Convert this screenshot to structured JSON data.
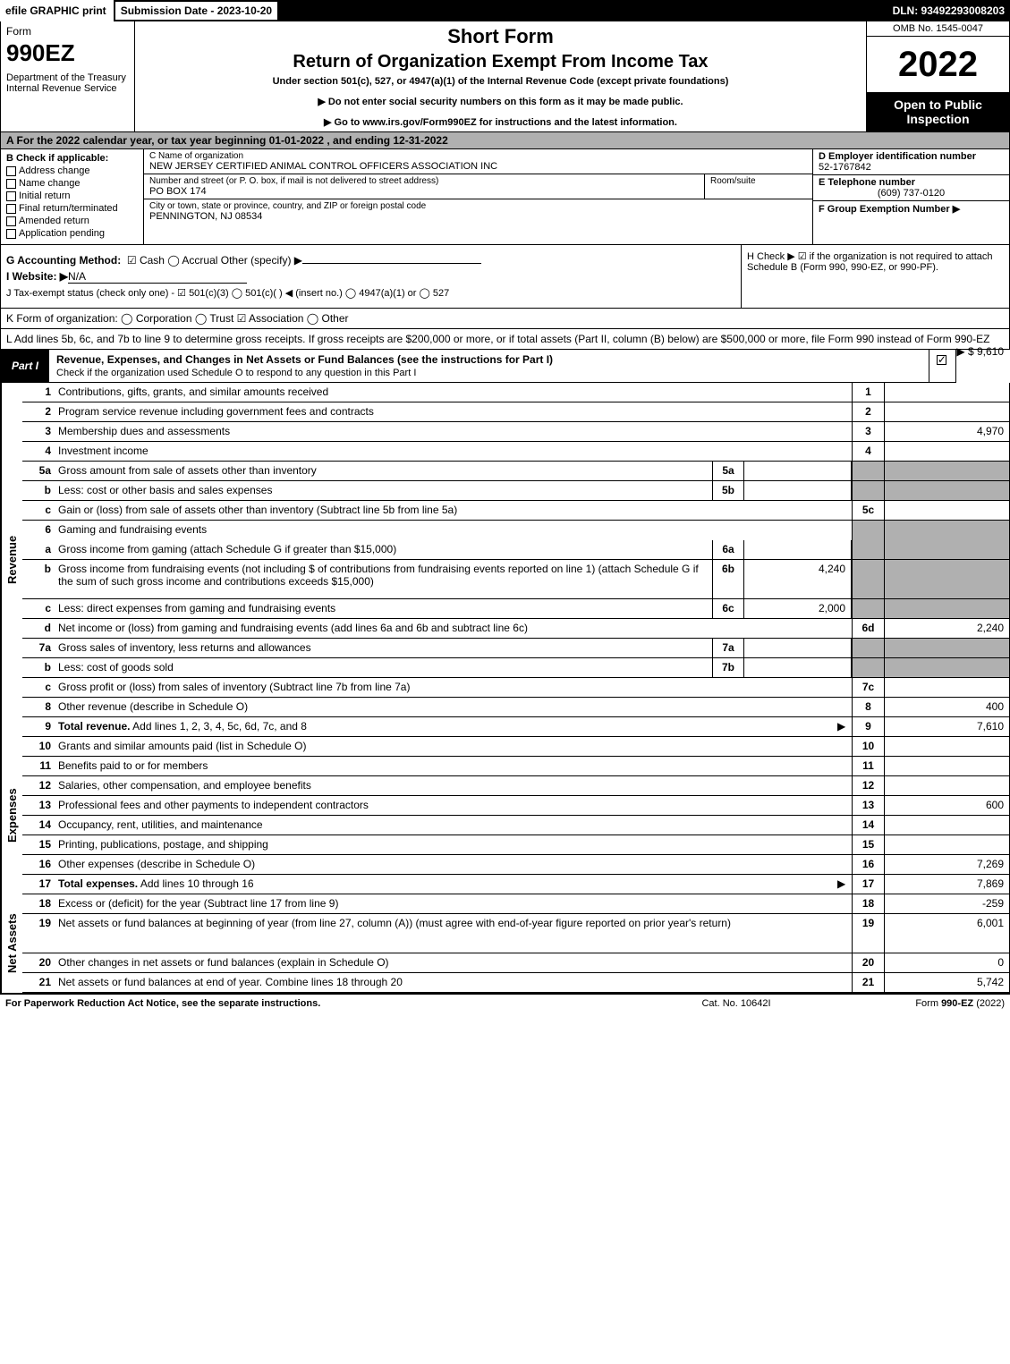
{
  "colors": {
    "black": "#000000",
    "white": "#ffffff",
    "gray_bg": "#b0b0b0"
  },
  "topbar": {
    "efile": "efile GRAPHIC print",
    "sub_date": "Submission Date - 2023-10-20",
    "dln": "DLN: 93492293008203"
  },
  "header": {
    "form_label": "Form",
    "form_no": "990EZ",
    "dept": "Department of the Treasury\nInternal Revenue Service",
    "short": "Short Form",
    "title": "Return of Organization Exempt From Income Tax",
    "under": "Under section 501(c), 527, or 4947(a)(1) of the Internal Revenue Code (except private foundations)",
    "note1": "▶ Do not enter social security numbers on this form as it may be made public.",
    "note2": "▶ Go to www.irs.gov/Form990EZ for instructions and the latest information.",
    "omb": "OMB No. 1545-0047",
    "year": "2022",
    "open": "Open to Public Inspection"
  },
  "A": "A  For the 2022 calendar year, or tax year beginning 01-01-2022  , and ending 12-31-2022",
  "B": {
    "label": "B  Check if applicable:",
    "opts": [
      "Address change",
      "Name change",
      "Initial return",
      "Final return/terminated",
      "Amended return",
      "Application pending"
    ]
  },
  "C": {
    "name_lbl": "C Name of organization",
    "name": "NEW JERSEY CERTIFIED ANIMAL CONTROL OFFICERS ASSOCIATION INC",
    "street_lbl": "Number and street (or P. O. box, if mail is not delivered to street address)",
    "street": "PO BOX 174",
    "room_lbl": "Room/suite",
    "city_lbl": "City or town, state or province, country, and ZIP or foreign postal code",
    "city": "PENNINGTON, NJ  08534"
  },
  "D": {
    "lbl": "D Employer identification number",
    "val": "52-1767842"
  },
  "E": {
    "lbl": "E Telephone number",
    "val": "(609) 737-0120"
  },
  "F": {
    "lbl": "F Group Exemption Number  ▶",
    "val": ""
  },
  "G": {
    "lbl": "G Accounting Method:",
    "opts_text": "☑ Cash  ◯ Accrual   Other (specify) ▶"
  },
  "H": "H   Check ▶  ☑  if the organization is not required to attach Schedule B (Form 990, 990-EZ, or 990-PF).",
  "I": {
    "lbl": "I Website: ▶",
    "val": "N/A"
  },
  "J": "J Tax-exempt status (check only one) -  ☑ 501(c)(3) ◯ 501(c)(  ) ◀ (insert no.) ◯ 4947(a)(1) or ◯ 527",
  "K": "K Form of organization:   ◯ Corporation  ◯ Trust  ☑ Association  ◯ Other",
  "L": {
    "text": "L Add lines 5b, 6c, and 7b to line 9 to determine gross receipts. If gross receipts are $200,000 or more, or if total assets (Part II, column (B) below) are $500,000 or more, file Form 990 instead of Form 990-EZ",
    "amt": "▶ $ 9,610"
  },
  "partI": {
    "label": "Part I",
    "title": "Revenue, Expenses, and Changes in Net Assets or Fund Balances (see the instructions for Part I)",
    "sub": "Check if the organization used Schedule O to respond to any question in this Part I",
    "checked": true
  },
  "sections": [
    {
      "label": "Revenue",
      "rows": [
        {
          "n": "1",
          "d": "Contributions, gifts, grants, and similar amounts received",
          "rn": "1",
          "rv": ""
        },
        {
          "n": "2",
          "d": "Program service revenue including government fees and contracts",
          "rn": "2",
          "rv": ""
        },
        {
          "n": "3",
          "d": "Membership dues and assessments",
          "rn": "3",
          "rv": "4,970"
        },
        {
          "n": "4",
          "d": "Investment income",
          "rn": "4",
          "rv": ""
        },
        {
          "n": "5a",
          "d": "Gross amount from sale of assets other than inventory",
          "mn": "5a",
          "mv": "",
          "gray_r": true
        },
        {
          "n": "b",
          "d": "Less: cost or other basis and sales expenses",
          "mn": "5b",
          "mv": "",
          "gray_r": true
        },
        {
          "n": "c",
          "d": "Gain or (loss) from sale of assets other than inventory (Subtract line 5b from line 5a)",
          "rn": "5c",
          "rv": ""
        },
        {
          "n": "6",
          "d": "Gaming and fundraising events",
          "gray_r": true,
          "noborder": true
        },
        {
          "n": "a",
          "d": "Gross income from gaming (attach Schedule G if greater than $15,000)",
          "mn": "6a",
          "mv": "",
          "gray_r": true
        },
        {
          "n": "b",
          "d": "Gross income from fundraising events (not including $                    of contributions from fundraising events reported on line 1) (attach Schedule G if the sum of such gross income and contributions exceeds $15,000)",
          "mn": "6b",
          "mv": "4,240",
          "gray_r": true,
          "tall": true
        },
        {
          "n": "c",
          "d": "Less: direct expenses from gaming and fundraising events",
          "mn": "6c",
          "mv": "2,000",
          "gray_r": true
        },
        {
          "n": "d",
          "d": "Net income or (loss) from gaming and fundraising events (add lines 6a and 6b and subtract line 6c)",
          "rn": "6d",
          "rv": "2,240"
        },
        {
          "n": "7a",
          "d": "Gross sales of inventory, less returns and allowances",
          "mn": "7a",
          "mv": "",
          "gray_r": true
        },
        {
          "n": "b",
          "d": "Less: cost of goods sold",
          "mn": "7b",
          "mv": "",
          "gray_r": true
        },
        {
          "n": "c",
          "d": "Gross profit or (loss) from sales of inventory (Subtract line 7b from line 7a)",
          "rn": "7c",
          "rv": ""
        },
        {
          "n": "8",
          "d": "Other revenue (describe in Schedule O)",
          "rn": "8",
          "rv": "400"
        },
        {
          "n": "9",
          "d": "Total revenue. Add lines 1, 2, 3, 4, 5c, 6d, 7c, and 8",
          "rn": "9",
          "rv": "7,610",
          "bold": true,
          "arrow": true
        }
      ]
    },
    {
      "label": "Expenses",
      "rows": [
        {
          "n": "10",
          "d": "Grants and similar amounts paid (list in Schedule O)",
          "rn": "10",
          "rv": ""
        },
        {
          "n": "11",
          "d": "Benefits paid to or for members",
          "rn": "11",
          "rv": ""
        },
        {
          "n": "12",
          "d": "Salaries, other compensation, and employee benefits",
          "rn": "12",
          "rv": ""
        },
        {
          "n": "13",
          "d": "Professional fees and other payments to independent contractors",
          "rn": "13",
          "rv": "600"
        },
        {
          "n": "14",
          "d": "Occupancy, rent, utilities, and maintenance",
          "rn": "14",
          "rv": ""
        },
        {
          "n": "15",
          "d": "Printing, publications, postage, and shipping",
          "rn": "15",
          "rv": ""
        },
        {
          "n": "16",
          "d": "Other expenses (describe in Schedule O)",
          "rn": "16",
          "rv": "7,269"
        },
        {
          "n": "17",
          "d": "Total expenses. Add lines 10 through 16",
          "rn": "17",
          "rv": "7,869",
          "bold": true,
          "arrow": true
        }
      ]
    },
    {
      "label": "Net Assets",
      "rows": [
        {
          "n": "18",
          "d": "Excess or (deficit) for the year (Subtract line 17 from line 9)",
          "rn": "18",
          "rv": "-259"
        },
        {
          "n": "19",
          "d": "Net assets or fund balances at beginning of year (from line 27, column (A)) (must agree with end-of-year figure reported on prior year's return)",
          "rn": "19",
          "rv": "6,001",
          "tall": true
        },
        {
          "n": "20",
          "d": "Other changes in net assets or fund balances (explain in Schedule O)",
          "rn": "20",
          "rv": "0"
        },
        {
          "n": "21",
          "d": "Net assets or fund balances at end of year. Combine lines 18 through 20",
          "rn": "21",
          "rv": "5,742"
        }
      ]
    }
  ],
  "footer": {
    "left": "For Paperwork Reduction Act Notice, see the separate instructions.",
    "center": "Cat. No. 10642I",
    "right": "Form 990-EZ (2022)"
  }
}
